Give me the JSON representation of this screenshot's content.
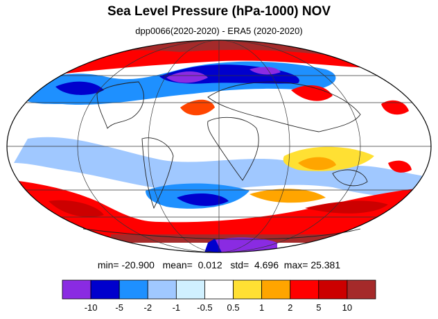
{
  "title": "Sea Level Pressure (hPa-1000) NOV",
  "subtitle": "dpp0066(2020-2020) - ERA5 (2020-2020)",
  "stats": {
    "min_label": "min=",
    "min": "-20.900",
    "mean_label": "mean=",
    "mean": "0.012",
    "std_label": "std=",
    "std": "4.696",
    "max_label": "max=",
    "max": "25.381"
  },
  "chart_data": {
    "type": "heatmap",
    "projection": "mollweide",
    "grid": true,
    "variable": "Sea Level Pressure (hPa-1000)",
    "levels": [
      "-10",
      "-5",
      "-2",
      "-1",
      "-0.5",
      "0.5",
      "1",
      "2",
      "5",
      "10"
    ],
    "colors": [
      "#8a2be2",
      "#0000cd",
      "#1e90ff",
      "#a0c8ff",
      "#d0f0ff",
      "#ffffff",
      "#ffe033",
      "#ffa500",
      "#ff0000",
      "#cc0000",
      "#a52a2a"
    ]
  }
}
